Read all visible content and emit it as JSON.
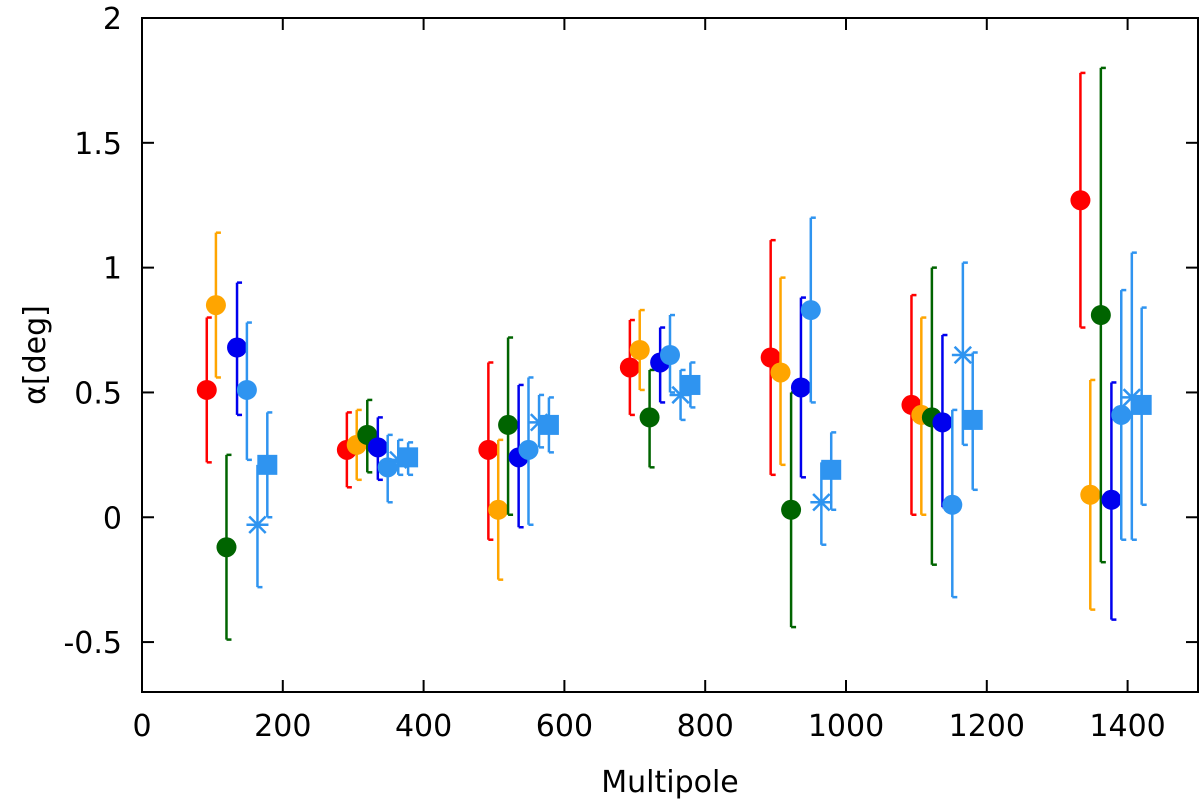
{
  "chart_data": {
    "type": "scatter",
    "title": "",
    "xlabel": "Multipole",
    "ylabel": "α[deg]",
    "xlim": [
      0,
      1500
    ],
    "ylim": [
      -0.7,
      2
    ],
    "xticks": [
      "0",
      "200",
      "400",
      "600",
      "800",
      "1000",
      "1200",
      "1400"
    ],
    "yticks": [
      "-0.5",
      "0",
      "0.5",
      "1",
      "1.5",
      "2"
    ],
    "grid": false,
    "legend": "none",
    "series": [
      {
        "name": "red",
        "color": "#ff0000",
        "marker": "circle",
        "points": [
          {
            "x": 92,
            "y": 0.51,
            "lo": 0.22,
            "hi": 0.8
          },
          {
            "x": 291,
            "y": 0.27,
            "lo": 0.12,
            "hi": 0.42
          },
          {
            "x": 492,
            "y": 0.27,
            "lo": -0.09,
            "hi": 0.62
          },
          {
            "x": 693,
            "y": 0.6,
            "lo": 0.41,
            "hi": 0.79
          },
          {
            "x": 893,
            "y": 0.64,
            "lo": 0.17,
            "hi": 1.11
          },
          {
            "x": 1093,
            "y": 0.45,
            "lo": 0.01,
            "hi": 0.89
          },
          {
            "x": 1333,
            "y": 1.27,
            "lo": 0.76,
            "hi": 1.78
          }
        ]
      },
      {
        "name": "orange",
        "color": "#ffa500",
        "marker": "circle",
        "points": [
          {
            "x": 105,
            "y": 0.85,
            "lo": 0.56,
            "hi": 1.14
          },
          {
            "x": 305,
            "y": 0.29,
            "lo": 0.15,
            "hi": 0.43
          },
          {
            "x": 506,
            "y": 0.03,
            "lo": -0.25,
            "hi": 0.31
          },
          {
            "x": 707,
            "y": 0.67,
            "lo": 0.51,
            "hi": 0.83
          },
          {
            "x": 907,
            "y": 0.58,
            "lo": 0.21,
            "hi": 0.96
          },
          {
            "x": 1107,
            "y": 0.41,
            "lo": 0.01,
            "hi": 0.8
          },
          {
            "x": 1347,
            "y": 0.09,
            "lo": -0.37,
            "hi": 0.55
          }
        ]
      },
      {
        "name": "darkgreen",
        "color": "#006400",
        "marker": "circle",
        "points": [
          {
            "x": 120,
            "y": -0.12,
            "lo": -0.49,
            "hi": 0.25
          },
          {
            "x": 320,
            "y": 0.33,
            "lo": 0.18,
            "hi": 0.47
          },
          {
            "x": 520,
            "y": 0.37,
            "lo": 0.01,
            "hi": 0.72
          },
          {
            "x": 721,
            "y": 0.4,
            "lo": 0.2,
            "hi": 0.59
          },
          {
            "x": 922,
            "y": 0.03,
            "lo": -0.44,
            "hi": 0.5
          },
          {
            "x": 1122,
            "y": 0.4,
            "lo": -0.19,
            "hi": 1.0
          },
          {
            "x": 1362,
            "y": 0.81,
            "lo": -0.18,
            "hi": 1.8
          }
        ]
      },
      {
        "name": "blue",
        "color": "#0000ee",
        "marker": "circle",
        "points": [
          {
            "x": 135,
            "y": 0.68,
            "lo": 0.41,
            "hi": 0.94
          },
          {
            "x": 335,
            "y": 0.28,
            "lo": 0.15,
            "hi": 0.4
          },
          {
            "x": 535,
            "y": 0.24,
            "lo": -0.04,
            "hi": 0.53
          },
          {
            "x": 736,
            "y": 0.62,
            "lo": 0.46,
            "hi": 0.76
          },
          {
            "x": 936,
            "y": 0.52,
            "lo": 0.16,
            "hi": 0.88
          },
          {
            "x": 1137,
            "y": 0.38,
            "lo": 0.04,
            "hi": 0.73
          },
          {
            "x": 1377,
            "y": 0.07,
            "lo": -0.41,
            "hi": 0.54
          }
        ]
      },
      {
        "name": "lightblue-circle",
        "color": "#2f94f0",
        "marker": "circle",
        "points": [
          {
            "x": 149,
            "y": 0.51,
            "lo": 0.23,
            "hi": 0.78
          },
          {
            "x": 349,
            "y": 0.2,
            "lo": 0.06,
            "hi": 0.33
          },
          {
            "x": 549,
            "y": 0.27,
            "lo": -0.03,
            "hi": 0.56
          },
          {
            "x": 750,
            "y": 0.65,
            "lo": 0.5,
            "hi": 0.81
          },
          {
            "x": 950,
            "y": 0.83,
            "lo": 0.46,
            "hi": 1.2
          },
          {
            "x": 1151,
            "y": 0.05,
            "lo": -0.32,
            "hi": 0.43
          },
          {
            "x": 1391,
            "y": 0.41,
            "lo": -0.09,
            "hi": 0.91
          }
        ]
      },
      {
        "name": "lightblue-star",
        "color": "#2f94f0",
        "marker": "star",
        "points": [
          {
            "x": 164,
            "y": -0.03,
            "lo": -0.28,
            "hi": 0.21
          },
          {
            "x": 364,
            "y": 0.23,
            "lo": 0.17,
            "hi": 0.31
          },
          {
            "x": 564,
            "y": 0.38,
            "lo": 0.28,
            "hi": 0.49
          },
          {
            "x": 765,
            "y": 0.49,
            "lo": 0.39,
            "hi": 0.59
          },
          {
            "x": 965,
            "y": 0.06,
            "lo": -0.11,
            "hi": 0.22
          },
          {
            "x": 1166,
            "y": 0.65,
            "lo": 0.29,
            "hi": 1.02
          },
          {
            "x": 1406,
            "y": 0.48,
            "lo": -0.09,
            "hi": 1.06
          }
        ]
      },
      {
        "name": "lightblue-square",
        "color": "#2f94f0",
        "marker": "square",
        "points": [
          {
            "x": 178,
            "y": 0.21,
            "lo": 0.0,
            "hi": 0.42
          },
          {
            "x": 378,
            "y": 0.24,
            "lo": 0.17,
            "hi": 0.3
          },
          {
            "x": 578,
            "y": 0.37,
            "lo": 0.26,
            "hi": 0.48
          },
          {
            "x": 779,
            "y": 0.53,
            "lo": 0.44,
            "hi": 0.62
          },
          {
            "x": 979,
            "y": 0.19,
            "lo": 0.03,
            "hi": 0.34
          },
          {
            "x": 1180,
            "y": 0.39,
            "lo": 0.11,
            "hi": 0.66
          },
          {
            "x": 1420,
            "y": 0.45,
            "lo": 0.05,
            "hi": 0.84
          }
        ]
      }
    ]
  }
}
